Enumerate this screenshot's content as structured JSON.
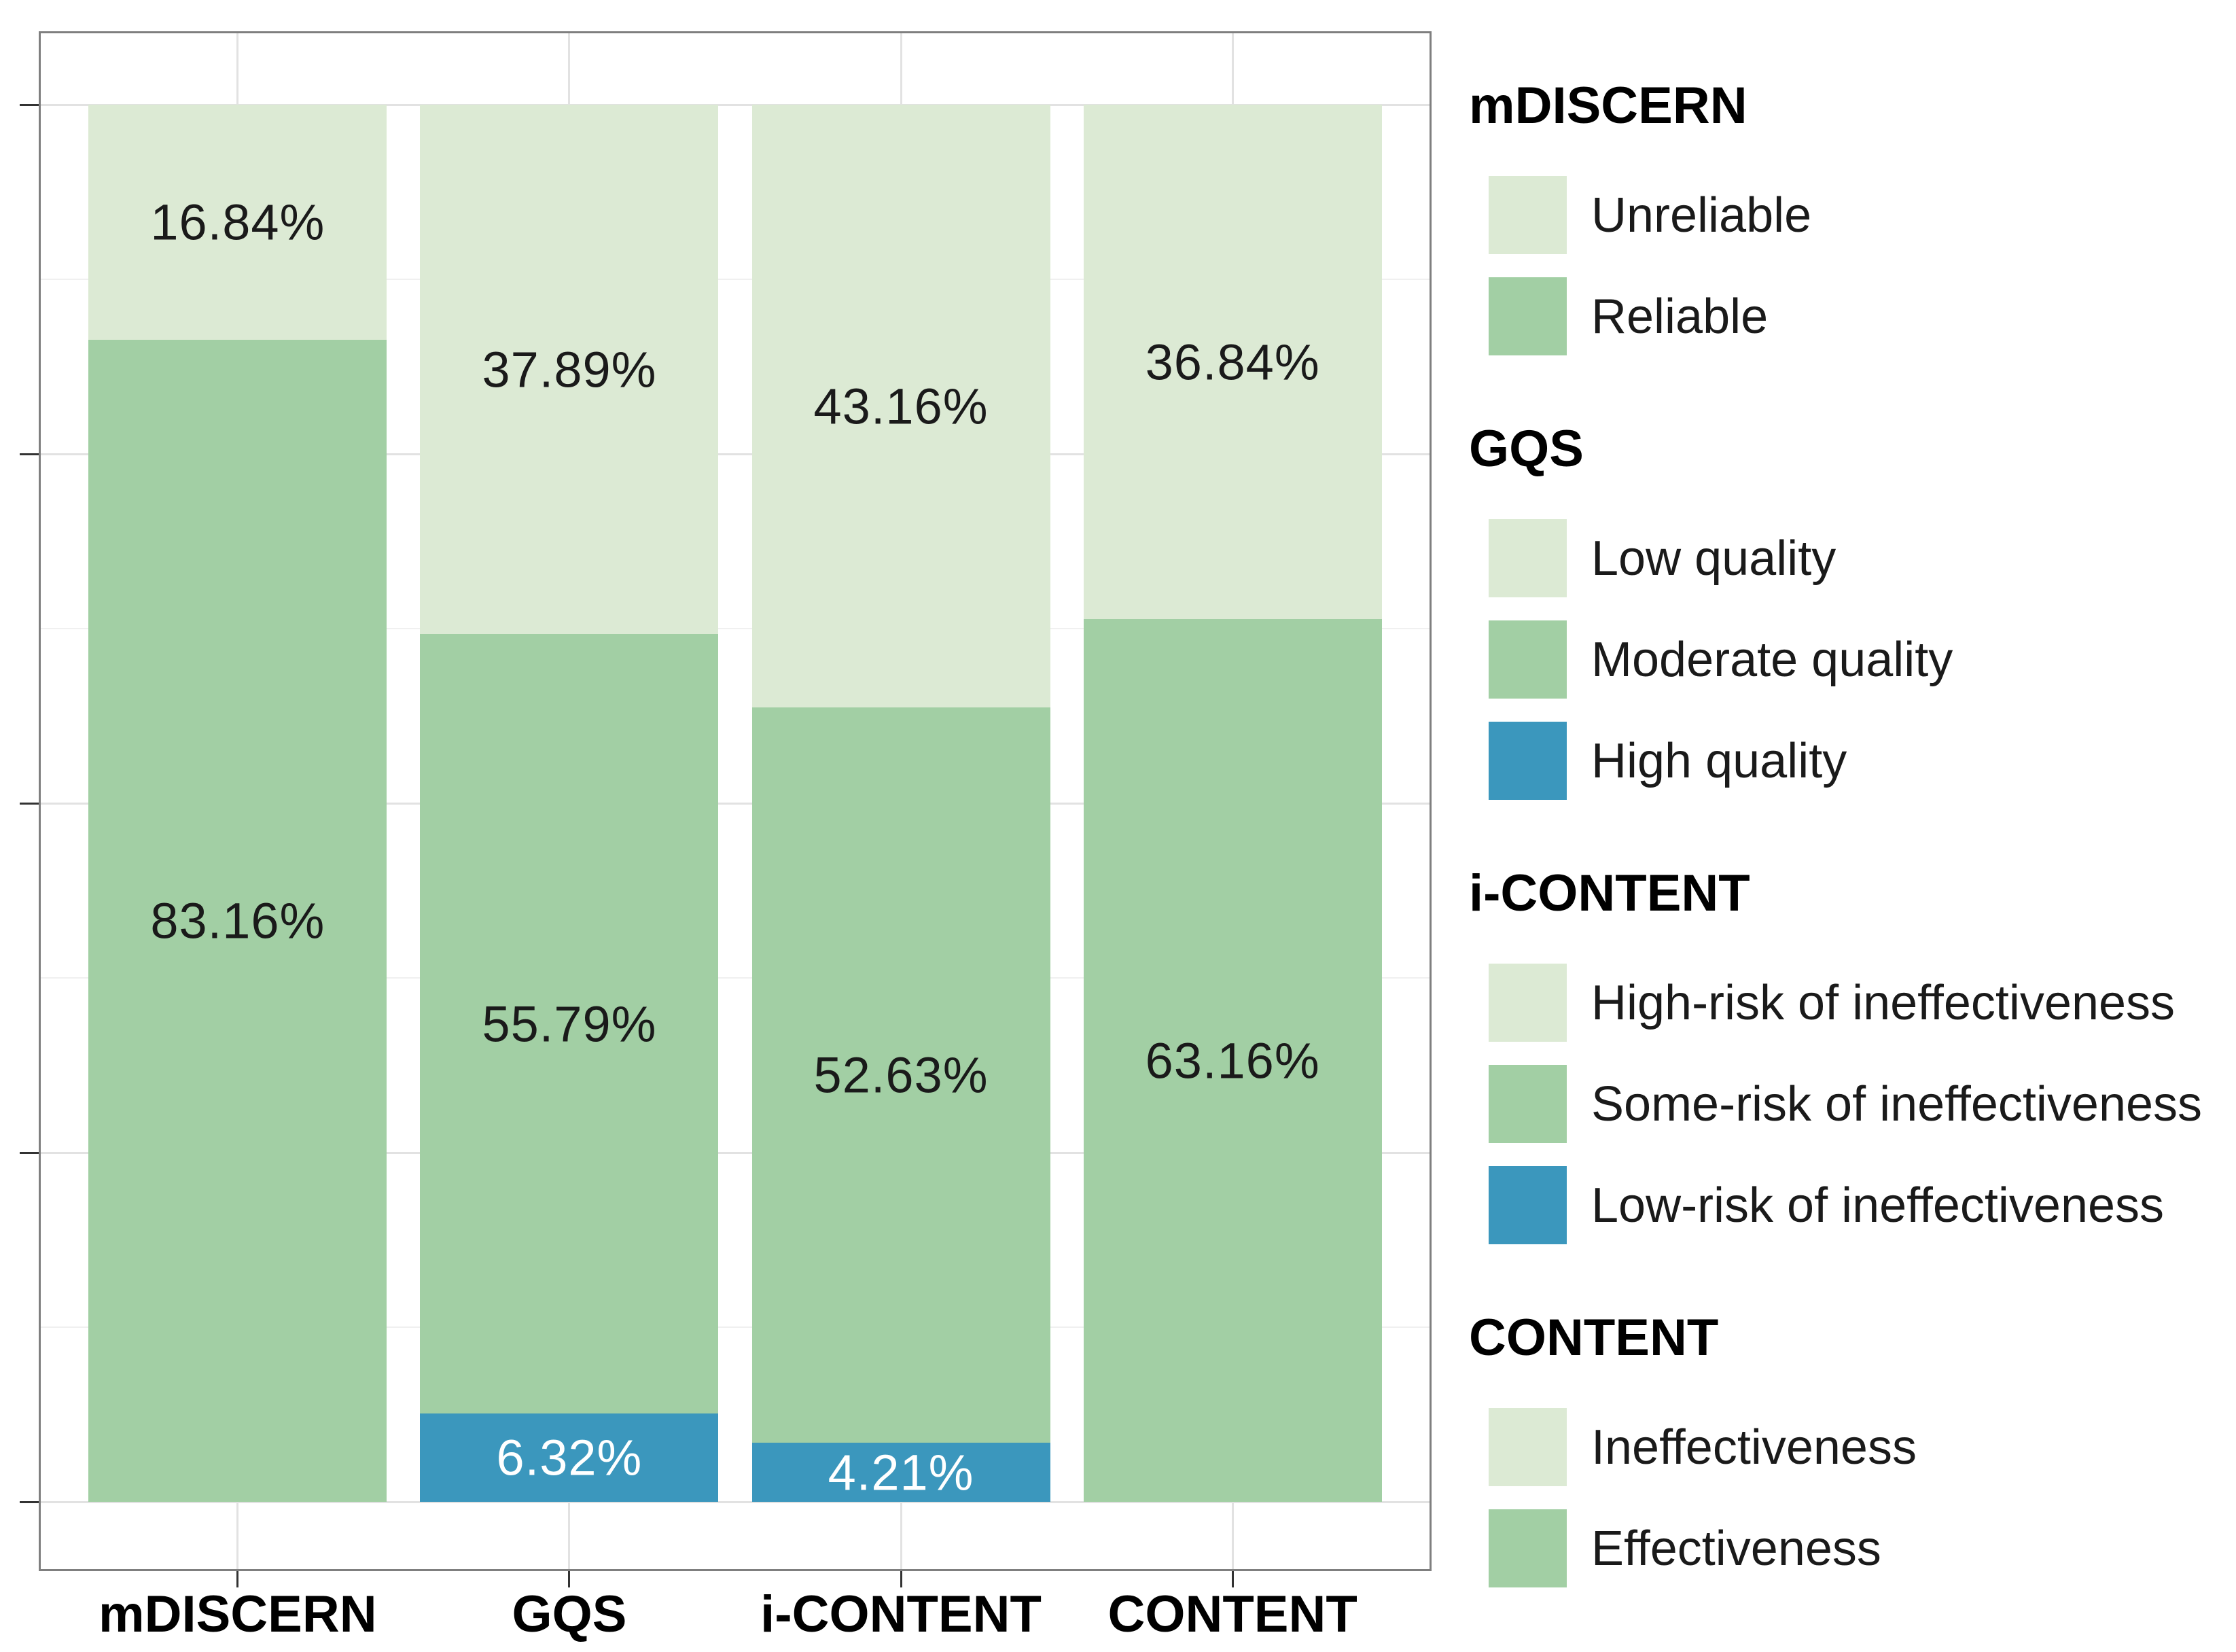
{
  "chart_data": {
    "type": "bar",
    "stacked": true,
    "orientation": "vertical",
    "title": "",
    "xlabel": "",
    "ylabel": "",
    "unit": "percent",
    "ylim": [
      0,
      100
    ],
    "y_major_ticks": [
      0,
      25,
      50,
      75,
      100
    ],
    "y_minor_ticks": [
      12.5,
      37.5,
      62.5,
      87.5
    ],
    "y_tick_labels_visible": false,
    "grid": "horizontal major+minor, vertical major at category centers, drawn under bars",
    "legend_position": "right",
    "categories": [
      "mDISCERN",
      "GQS",
      "i-CONTENT",
      "CONTENT"
    ],
    "bars": [
      {
        "category": "mDISCERN",
        "segments": [
          {
            "name": "Reliable",
            "value": 83.16,
            "label": "83.16%",
            "color": "medium-green",
            "label_color": "dark"
          },
          {
            "name": "Unreliable",
            "value": 16.84,
            "label": "16.84%",
            "color": "light-green",
            "label_color": "dark"
          }
        ]
      },
      {
        "category": "GQS",
        "segments": [
          {
            "name": "High quality",
            "value": 6.32,
            "label": "6.32%",
            "color": "blue",
            "label_color": "white"
          },
          {
            "name": "Moderate quality",
            "value": 55.79,
            "label": "55.79%",
            "color": "medium-green",
            "label_color": "dark"
          },
          {
            "name": "Low quality",
            "value": 37.89,
            "label": "37.89%",
            "color": "light-green",
            "label_color": "dark"
          }
        ]
      },
      {
        "category": "i-CONTENT",
        "segments": [
          {
            "name": "Low-risk of ineffectiveness",
            "value": 4.21,
            "label": "4.21%",
            "color": "blue",
            "label_color": "white"
          },
          {
            "name": "Some-risk of ineffectiveness",
            "value": 52.63,
            "label": "52.63%",
            "color": "medium-green",
            "label_color": "dark"
          },
          {
            "name": "High-risk of ineffectiveness",
            "value": 43.16,
            "label": "43.16%",
            "color": "light-green",
            "label_color": "dark"
          }
        ]
      },
      {
        "category": "CONTENT",
        "segments": [
          {
            "name": "Effectiveness",
            "value": 63.16,
            "label": "63.16%",
            "color": "medium-green",
            "label_color": "dark"
          },
          {
            "name": "Ineffectiveness",
            "value": 36.84,
            "label": "36.84%",
            "color": "light-green",
            "label_color": "dark"
          }
        ]
      }
    ]
  },
  "legend": {
    "groups": [
      {
        "title": "mDISCERN",
        "items": [
          {
            "label": "Unreliable",
            "color": "light-green"
          },
          {
            "label": "Reliable",
            "color": "medium-green"
          }
        ]
      },
      {
        "title": "GQS",
        "items": [
          {
            "label": "Low quality",
            "color": "light-green"
          },
          {
            "label": "Moderate quality",
            "color": "medium-green"
          },
          {
            "label": "High quality",
            "color": "blue"
          }
        ]
      },
      {
        "title": "i-CONTENT",
        "items": [
          {
            "label": "High-risk of ineffectiveness",
            "color": "light-green"
          },
          {
            "label": "Some-risk of ineffectiveness",
            "color": "medium-green"
          },
          {
            "label": "Low-risk of ineffectiveness",
            "color": "blue"
          }
        ]
      },
      {
        "title": "CONTENT",
        "items": [
          {
            "label": "Ineffectiveness",
            "color": "light-green"
          },
          {
            "label": "Effectiveness",
            "color": "medium-green"
          }
        ]
      }
    ]
  },
  "colors": {
    "light-green": "#dcead4",
    "medium-green": "#a2cfa4",
    "blue": "#3b97bd",
    "grid_major": "#e2e2e2",
    "grid_minor": "#f0f0f0",
    "panel_border": "#7f7f7f",
    "tick": "#333333",
    "label_dark": "#1a1a1a",
    "label_white": "#ffffff"
  }
}
